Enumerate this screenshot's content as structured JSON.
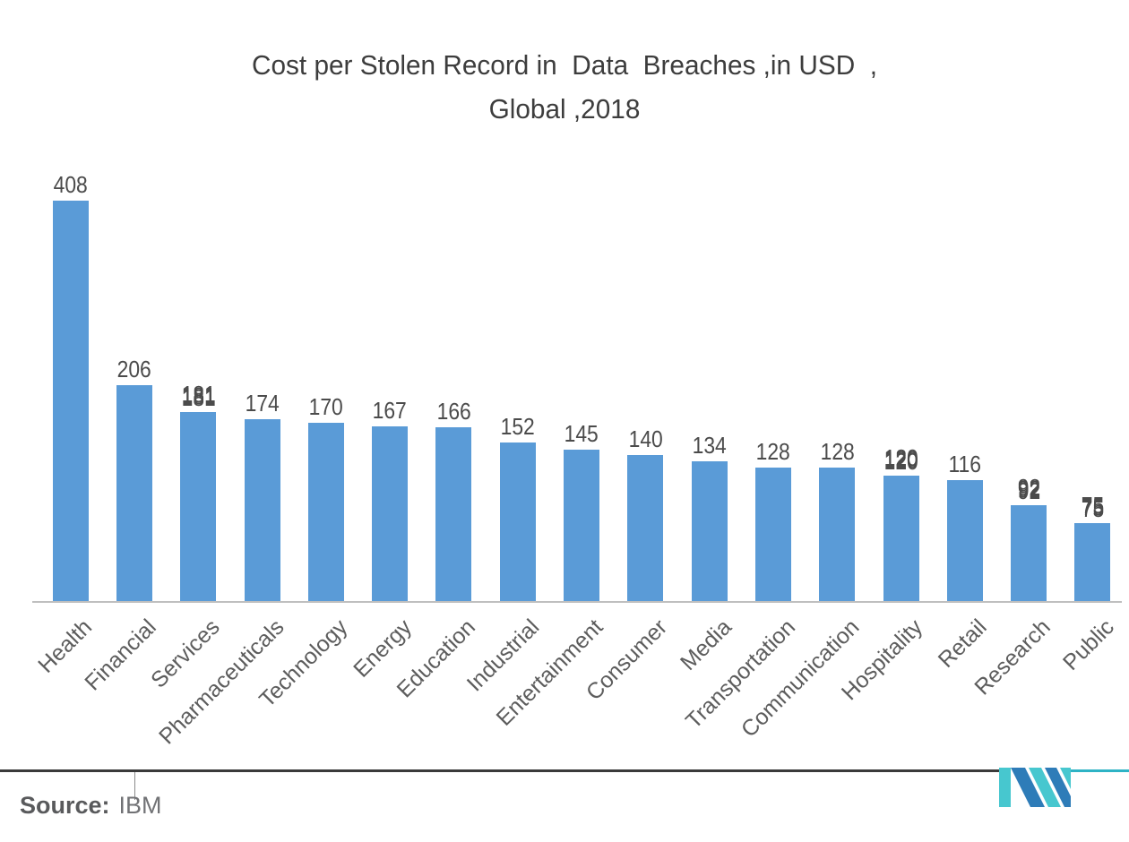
{
  "title": {
    "line1": "Cost per Stolen Record in  Data  Breaches ,in USD  ,",
    "line2": "Global ,2018"
  },
  "source": {
    "label": "Source:",
    "value": "IBM"
  },
  "colors": {
    "bar": "#5a9bd7",
    "axis_line": "#bfbfbf",
    "title_text": "#3d3d3d",
    "value_text": "#4b4b4b",
    "category_text": "#5d5d5d",
    "separator_dark": "#3a3a3a",
    "separator_teal": "#2eb3c5",
    "logo_teal": "#47c7cf",
    "logo_blue": "#2e7cb8"
  },
  "chart_data": {
    "type": "bar",
    "title": "Cost per Stolen Record in Data Breaches, in USD, Global, 2018",
    "xlabel": "",
    "ylabel": "",
    "ylim": [
      0,
      408
    ],
    "grid": false,
    "legend": false,
    "categories": [
      "Health",
      "Financial",
      "Services",
      "Pharmaceuticals",
      "Technology",
      "Energy",
      "Education",
      "Industrial",
      "Entertainment",
      "Consumer",
      "Media",
      "Transportation",
      "Communication",
      "Hospitality",
      "Retail",
      "Research",
      "Public"
    ],
    "values": [
      408,
      206,
      181,
      174,
      170,
      167,
      166,
      152,
      145,
      140,
      134,
      128,
      128,
      120,
      116,
      92,
      75
    ],
    "doubled_value_indices": [
      2,
      13,
      15,
      16
    ]
  }
}
